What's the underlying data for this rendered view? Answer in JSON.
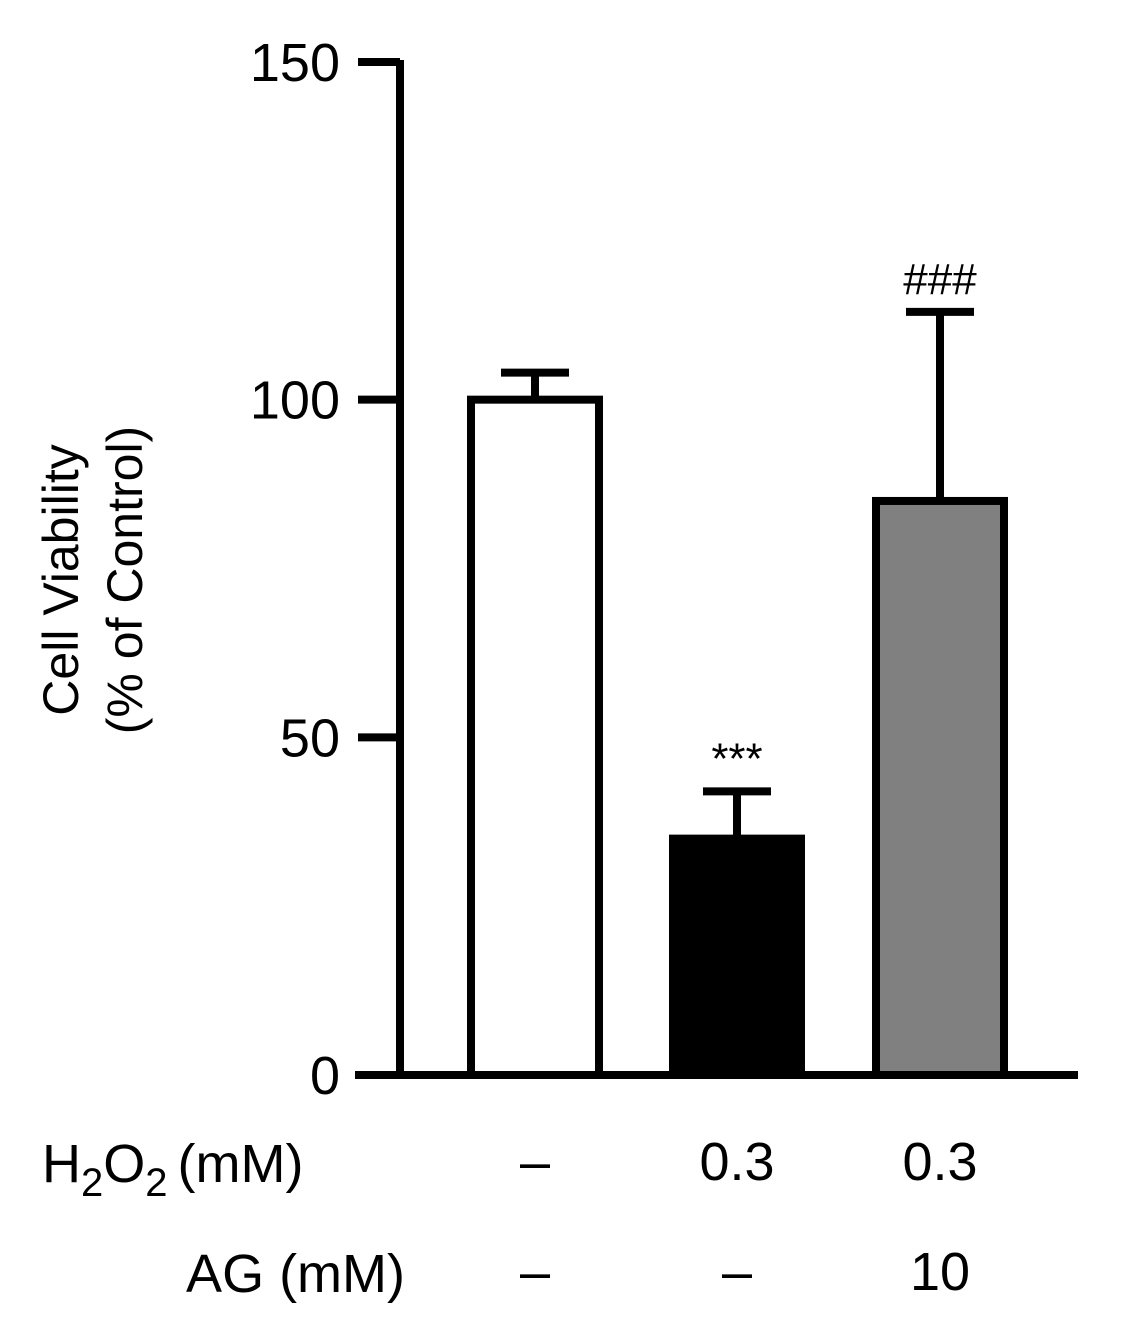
{
  "chart_data": {
    "type": "bar",
    "title": "",
    "xlabel": "",
    "ylabel_lines": [
      "Cell Viability",
      "(% of Control)"
    ],
    "ylim": [
      0,
      150
    ],
    "yticks": [
      0,
      50,
      100,
      150
    ],
    "ytick_labels": [
      "0",
      "50",
      "100",
      "150"
    ],
    "grid": false,
    "legend": "none",
    "bars": [
      {
        "value": 100,
        "error": 4,
        "fill": "#ffffff",
        "significance": ""
      },
      {
        "value": 35,
        "error": 7,
        "fill": "#000000",
        "significance": "***"
      },
      {
        "value": 85,
        "error": 28,
        "fill": "#808080",
        "significance": "###"
      }
    ],
    "treatment_rows": [
      {
        "label_main": "H",
        "label_sub1": "2",
        "label_mid": "O",
        "label_sub2": "2",
        "label_unit": "(mM)",
        "values": [
          "–",
          "0.3",
          "0.3"
        ]
      },
      {
        "label": "AG (mM)",
        "values": [
          "–",
          "–",
          "10"
        ]
      }
    ]
  },
  "colors": {
    "axis": "#000000",
    "bar_outline": "#000000"
  }
}
